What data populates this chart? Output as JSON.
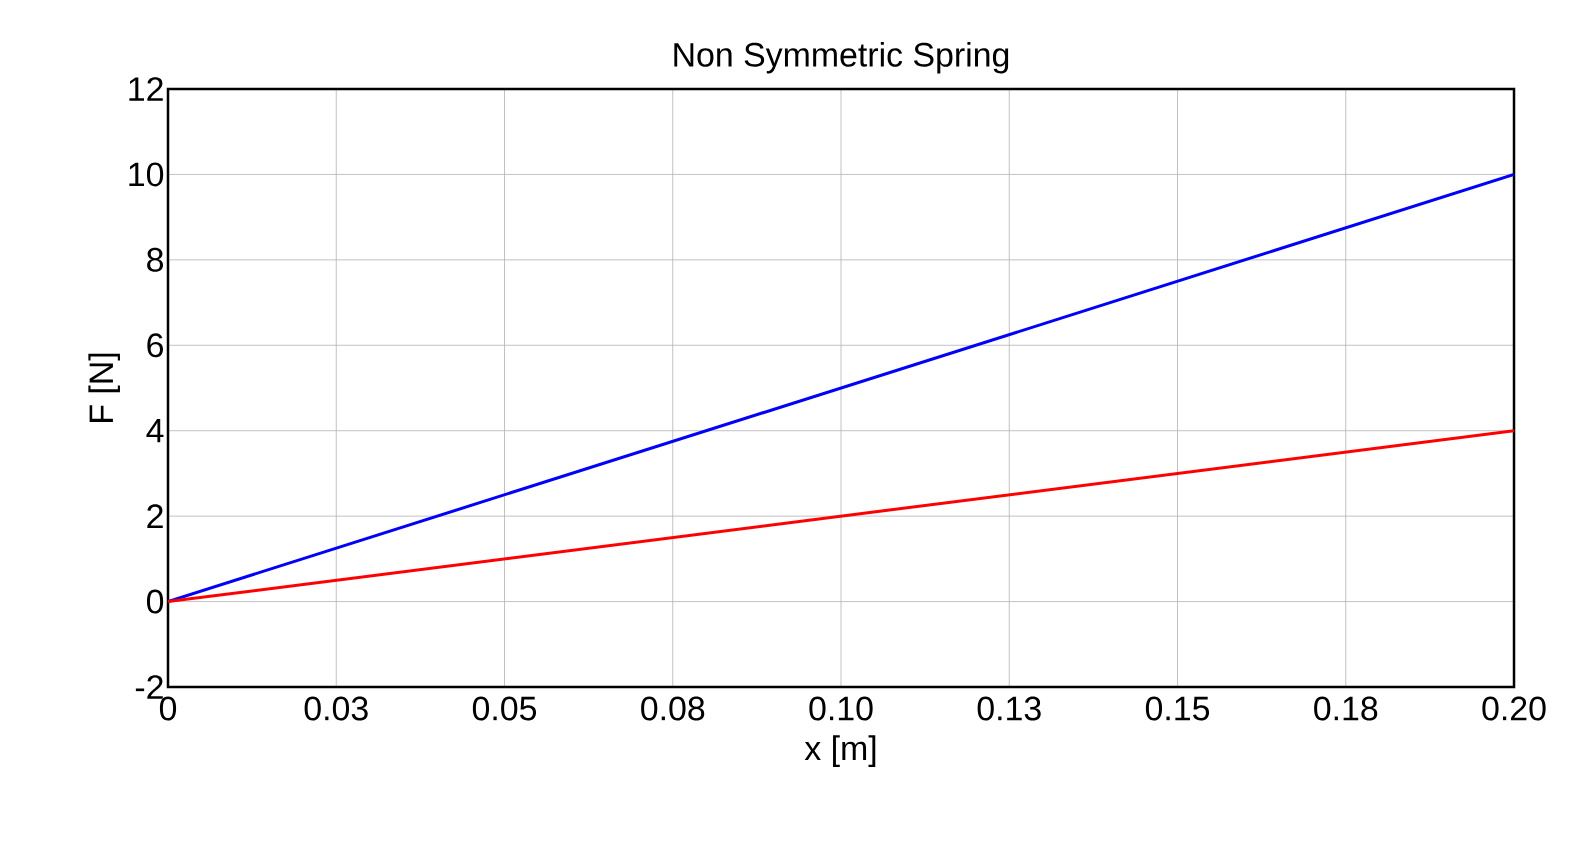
{
  "chart_data": {
    "type": "line",
    "title": "Non Symmetric Spring",
    "xlabel": "x [m]",
    "ylabel": "F [N]",
    "series": [
      {
        "color": "#0000ff",
        "values": [
          0,
          10
        ]
      },
      {
        "color": "#ff0000",
        "values": [
          0,
          4
        ]
      }
    ],
    "x": [
      0,
      0.2
    ],
    "xlim": [
      0,
      0.2
    ],
    "ylim": [
      -2,
      12
    ],
    "xticks": [
      0,
      {
        "value": 0.025,
        "label": "0.03"
      },
      {
        "value": 0.05,
        "label": "0.05"
      },
      {
        "value": 0.075,
        "label": "0.08"
      },
      {
        "value": 0.1,
        "label": "0.10"
      },
      {
        "value": 0.125,
        "label": "0.13"
      },
      {
        "value": 0.15,
        "label": "0.15"
      },
      {
        "value": 0.175,
        "label": "0.18"
      },
      {
        "value": 0.2,
        "label": "0.20"
      }
    ],
    "yticks": [
      -2,
      0,
      2,
      4,
      6,
      8,
      10,
      12
    ],
    "grid": true,
    "marker": "none",
    "line_style": "solid"
  }
}
